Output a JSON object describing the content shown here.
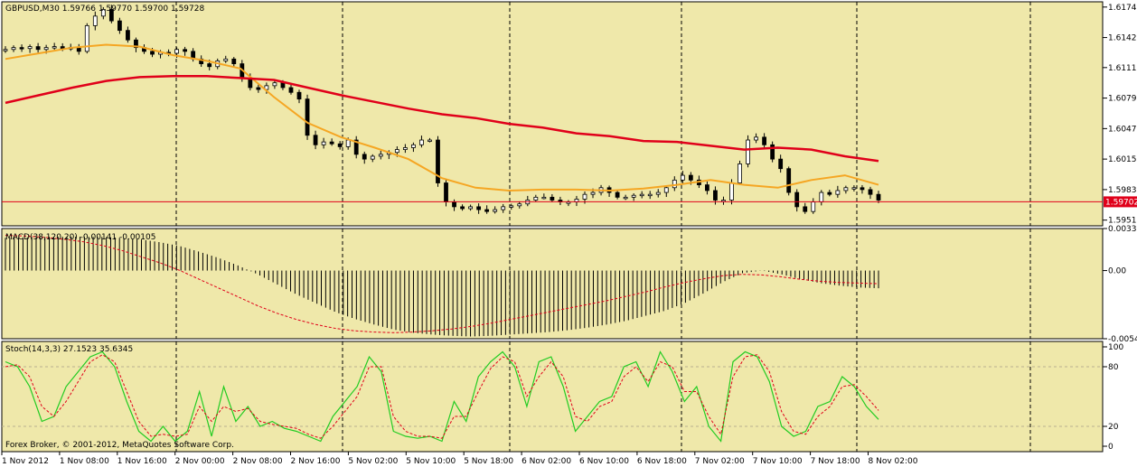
{
  "window": {
    "symbol_title": "GBPUSD,M30  1.59766 1.59770 1.59700 1.59728",
    "copyright": "Forex Broker, © 2001-2012, MetaQuotes Software Corp."
  },
  "colors": {
    "background": "#efe8aa",
    "candle": "#000000",
    "ma_fast": "#f5a623",
    "ma_slow": "#e0001a",
    "price_line": "#e0001a",
    "grid_sep": "#000000",
    "macd_signal": "#e0001a",
    "stoch_main": "#22cc22",
    "stoch_signal": "#e0001a"
  },
  "chart_data": [
    {
      "type": "candlestick",
      "symbol": "GBPUSD",
      "timeframe": "M30",
      "last_price": "1.59702",
      "y_ticks": [
        "1.61745",
        "1.61425",
        "1.61110",
        "1.60790",
        "1.60470",
        "1.60150",
        "1.59830",
        "1.59510"
      ],
      "ylim": [
        1.5945,
        1.618
      ],
      "price_series_approx": [
        1.613,
        1.6132,
        1.6131,
        1.6133,
        1.613,
        1.6132,
        1.6133,
        1.6131,
        1.6132,
        1.6128,
        1.6155,
        1.6165,
        1.6172,
        1.616,
        1.615,
        1.614,
        1.6132,
        1.6128,
        1.6125,
        1.6127,
        1.6126,
        1.613,
        1.6128,
        1.612,
        1.6115,
        1.6112,
        1.6118,
        1.612,
        1.6115,
        1.61,
        1.609,
        1.6088,
        1.6092,
        1.6095,
        1.609,
        1.6085,
        1.6078,
        1.604,
        1.603,
        1.6033,
        1.6031,
        1.6028,
        1.6035,
        1.602,
        1.6015,
        1.6018,
        1.602,
        1.6022,
        1.6025,
        1.6027,
        1.603,
        1.6035,
        1.6035,
        1.599,
        1.597,
        1.5965,
        1.5963,
        1.5965,
        1.5962,
        1.596,
        1.5962,
        1.5965,
        1.5966,
        1.5968,
        1.5972,
        1.5975,
        1.5975,
        1.5972,
        1.597,
        1.597,
        1.5973,
        1.5978,
        1.598,
        1.5985,
        1.598,
        1.5975,
        1.5975,
        1.5977,
        1.5978,
        1.5978,
        1.598,
        1.5985,
        1.5993,
        1.5998,
        1.5993,
        1.5988,
        1.5982,
        1.5972,
        1.5972,
        1.599,
        1.601,
        1.6035,
        1.6038,
        1.603,
        1.6015,
        1.6005,
        1.598,
        1.5965,
        1.596,
        1.597,
        1.598,
        1.5978,
        1.5982,
        1.5985,
        1.5985,
        1.5983,
        1.5978,
        1.5972
      ],
      "series": [
        {
          "values_approx": [
            1.612,
            1.6126,
            1.6132,
            1.6135,
            1.6133,
            1.6124,
            1.6118,
            1.611,
            1.608,
            1.6053,
            1.6038,
            1.6027,
            1.6015,
            1.5995,
            1.5985,
            1.5982,
            1.5983,
            1.5983,
            1.5982,
            1.5984,
            1.5988,
            1.5993,
            1.5988,
            1.5985,
            1.5993,
            1.5998,
            1.5988
          ]
        },
        {
          "values_approx": [
            1.6074,
            1.6082,
            1.609,
            1.6097,
            1.6101,
            1.6102,
            1.6102,
            1.61,
            1.6098,
            1.609,
            1.6082,
            1.6075,
            1.6068,
            1.6062,
            1.6058,
            1.6052,
            1.6048,
            1.6042,
            1.6039,
            1.6034,
            1.6033,
            1.6029,
            1.6025,
            1.6027,
            1.6025,
            1.6018,
            1.6013
          ]
        }
      ]
    },
    {
      "type": "histogram",
      "title": "MACD(38,120,20) -0.00141 -0.00105",
      "y_ticks": [
        "0.00335",
        "0.00",
        "-0.00543"
      ],
      "ylim": [
        -0.00543,
        0.00335
      ],
      "macd_approx": [
        0.0026,
        0.00265,
        0.00268,
        0.0027,
        0.0027,
        0.00268,
        0.0026,
        0.00248,
        0.00225,
        0.00195,
        0.0015,
        0.001,
        0.0004,
        -0.0003,
        -0.0011,
        -0.0019,
        -0.0026,
        -0.0033,
        -0.00385,
        -0.0043,
        -0.0047,
        -0.00495,
        -0.0051,
        -0.0052,
        -0.00525,
        -0.0052,
        -0.0051,
        -0.005,
        -0.0049,
        -0.00475,
        -0.00455,
        -0.0043,
        -0.004,
        -0.0036,
        -0.0032,
        -0.0026,
        -0.0018,
        -0.0009,
        -0.0002,
        0.0,
        -0.0003,
        -0.0007,
        -0.001,
        -0.0012,
        -0.00135,
        -0.00141
      ],
      "signal_approx": [
        0.0028,
        0.00275,
        0.00265,
        0.0025,
        0.0023,
        0.002,
        0.0016,
        0.0011,
        0.0006,
        0.0,
        -0.0007,
        -0.0014,
        -0.0021,
        -0.0028,
        -0.0034,
        -0.0039,
        -0.0043,
        -0.0046,
        -0.0048,
        -0.0049,
        -0.00495,
        -0.0049,
        -0.0048,
        -0.00465,
        -0.00445,
        -0.0042,
        -0.0039,
        -0.0036,
        -0.0033,
        -0.003,
        -0.0027,
        -0.0024,
        -0.00205,
        -0.0017,
        -0.0013,
        -0.00095,
        -0.00065,
        -0.0004,
        -0.0003,
        -0.00035,
        -0.0005,
        -0.0007,
        -0.00085,
        -0.00095,
        -0.001,
        -0.00105
      ]
    },
    {
      "type": "line",
      "title": "Stoch(14,3,3) 27.1523 35.6345",
      "y_ticks": [
        "100",
        "80",
        "20",
        "0"
      ],
      "ylim": [
        0,
        100
      ],
      "main_approx": [
        85,
        80,
        60,
        25,
        30,
        60,
        75,
        90,
        95,
        80,
        45,
        15,
        5,
        20,
        5,
        15,
        55,
        10,
        60,
        25,
        40,
        20,
        25,
        18,
        15,
        10,
        5,
        30,
        45,
        60,
        90,
        75,
        15,
        10,
        8,
        10,
        5,
        45,
        25,
        70,
        85,
        95,
        80,
        40,
        85,
        90,
        60,
        15,
        30,
        45,
        50,
        80,
        85,
        60,
        95,
        75,
        45,
        60,
        20,
        5,
        85,
        95,
        90,
        65,
        20,
        10,
        15,
        40,
        45,
        70,
        60,
        40,
        27
      ],
      "signal_approx": [
        80,
        82,
        70,
        40,
        30,
        45,
        65,
        85,
        92,
        85,
        55,
        25,
        10,
        12,
        10,
        12,
        40,
        25,
        40,
        35,
        38,
        25,
        22,
        20,
        18,
        12,
        8,
        20,
        35,
        50,
        80,
        80,
        30,
        15,
        10,
        10,
        8,
        30,
        30,
        55,
        78,
        90,
        85,
        50,
        70,
        85,
        70,
        30,
        25,
        40,
        45,
        70,
        80,
        65,
        85,
        80,
        55,
        55,
        30,
        12,
        70,
        90,
        92,
        75,
        35,
        15,
        12,
        30,
        40,
        60,
        62,
        50,
        36
      ]
    }
  ],
  "x_axis": {
    "labels": [
      "1 Nov 2012",
      "1 Nov 08:00",
      "1 Nov 16:00",
      "2 Nov 00:00",
      "2 Nov 08:00",
      "2 Nov 16:00",
      "5 Nov 02:00",
      "5 Nov 10:00",
      "5 Nov 18:00",
      "6 Nov 02:00",
      "6 Nov 10:00",
      "6 Nov 18:00",
      "7 Nov 02:00",
      "7 Nov 10:00",
      "7 Nov 18:00",
      "8 Nov 02:00"
    ]
  }
}
